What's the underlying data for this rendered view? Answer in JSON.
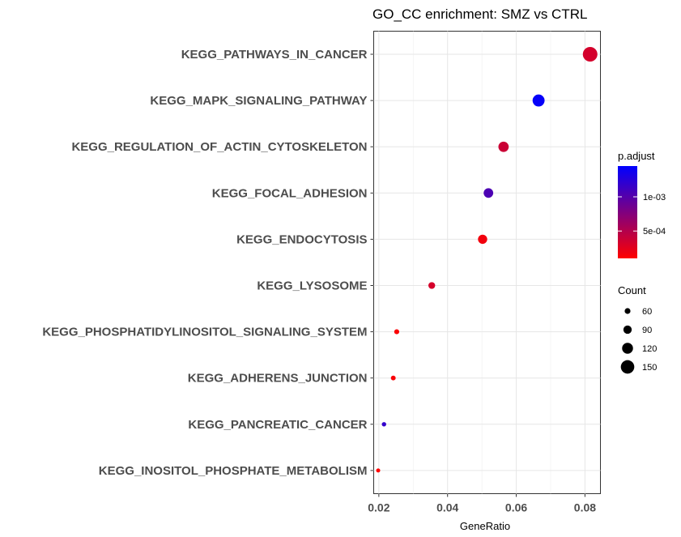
{
  "chart_data": {
    "type": "scatter",
    "title": "GO_CC enrichment: SMZ vs CTRL",
    "xlabel": "GeneRatio",
    "ylabel": "",
    "xlim": [
      0.0185,
      0.0845
    ],
    "x_ticks": [
      0.02,
      0.04,
      0.06,
      0.08
    ],
    "x_tick_labels": [
      "0.02",
      "0.04",
      "0.06",
      "0.08"
    ],
    "grid": true,
    "legend_position": "right",
    "categories": [
      "KEGG_PATHWAYS_IN_CANCER",
      "KEGG_MAPK_SIGNALING_PATHWAY",
      "KEGG_REGULATION_OF_ACTIN_CYTOSKELETON",
      "KEGG_FOCAL_ADHESION",
      "KEGG_ENDOCYTOSIS",
      "KEGG_LYSOSOME",
      "KEGG_PHOSPHATIDYLINOSITOL_SIGNALING_SYSTEM",
      "KEGG_ADHERENS_JUNCTION",
      "KEGG_PANCREATIC_CANCER",
      "KEGG_INOSITOL_PHOSPHATE_METABOLISM"
    ],
    "points": [
      {
        "category": "KEGG_PATHWAYS_IN_CANCER",
        "gene_ratio": 0.0815,
        "count": 163,
        "p_adjust": 0.00033
      },
      {
        "category": "KEGG_MAPK_SIGNALING_PATHWAY",
        "gene_ratio": 0.0665,
        "count": 133,
        "p_adjust": 0.00142
      },
      {
        "category": "KEGG_REGULATION_OF_ACTIN_CYTOSKELETON",
        "gene_ratio": 0.0563,
        "count": 113,
        "p_adjust": 0.00038
      },
      {
        "category": "KEGG_FOCAL_ADHESION",
        "gene_ratio": 0.0519,
        "count": 104,
        "p_adjust": 0.00105
      },
      {
        "category": "KEGG_ENDOCYTOSIS",
        "gene_ratio": 0.0502,
        "count": 100,
        "p_adjust": 0.00017
      },
      {
        "category": "KEGG_LYSOSOME",
        "gene_ratio": 0.0354,
        "count": 71,
        "p_adjust": 0.00032
      },
      {
        "category": "KEGG_PHOSPHATIDYLINOSITOL_SIGNALING_SYSTEM",
        "gene_ratio": 0.0252,
        "count": 50,
        "p_adjust": 0.00012
      },
      {
        "category": "KEGG_ADHERENS_JUNCTION",
        "gene_ratio": 0.0242,
        "count": 48,
        "p_adjust": 0.00013
      },
      {
        "category": "KEGG_PANCREATIC_CANCER",
        "gene_ratio": 0.0215,
        "count": 43,
        "p_adjust": 0.00118
      },
      {
        "category": "KEGG_INOSITOL_PHOSPHATE_METABOLISM",
        "gene_ratio": 0.0198,
        "count": 39,
        "p_adjust": 0.0001
      }
    ],
    "color_legend": {
      "title": "p.adjust",
      "low_color": "#ff0000",
      "high_color": "#0000ff",
      "min": 0.0001,
      "max": 0.00145,
      "ticks": [
        0.0005,
        0.001
      ],
      "tick_labels": [
        "5e-04",
        "1e-03"
      ]
    },
    "size_legend": {
      "title": "Count",
      "count_min": 39,
      "count_max": 163,
      "entries": [
        {
          "value": 60,
          "label": "60"
        },
        {
          "value": 90,
          "label": "90"
        },
        {
          "value": 120,
          "label": "120"
        },
        {
          "value": 150,
          "label": "150"
        }
      ]
    }
  }
}
